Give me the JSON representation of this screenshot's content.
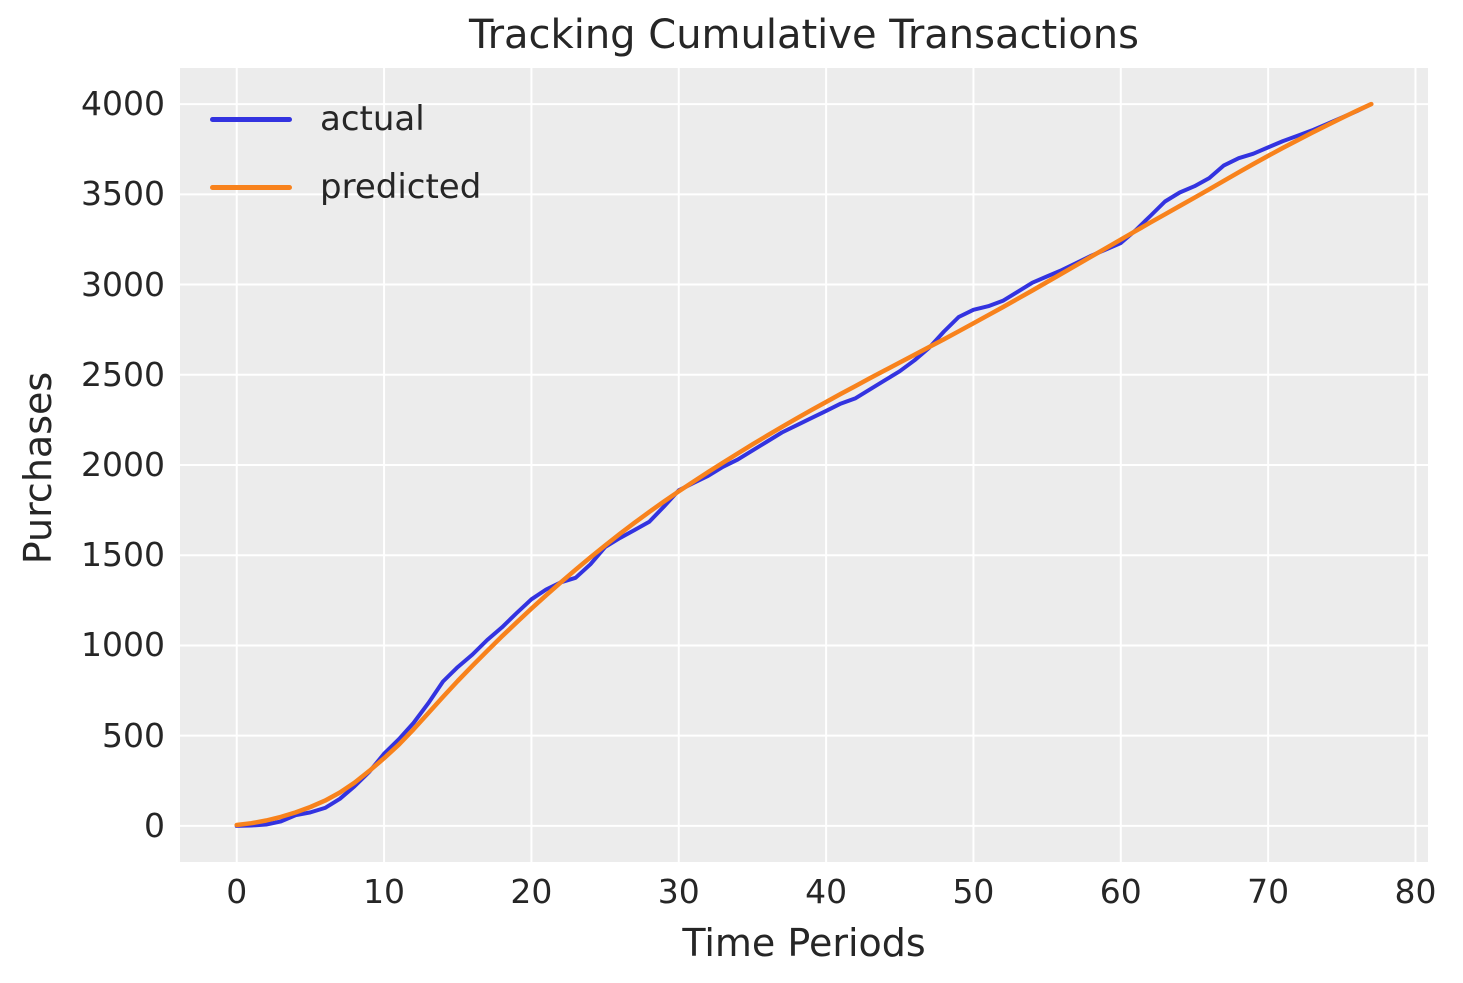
{
  "figure": {
    "title": "Tracking Cumulative Transactions",
    "xlabel": "Time Periods",
    "ylabel": "Purchases"
  },
  "chart_data": {
    "type": "line",
    "title": "Tracking Cumulative Transactions",
    "xlabel": "Time Periods",
    "ylabel": "Purchases",
    "grid": true,
    "legend_position": "upper left",
    "plot_bg_color": "#ececec",
    "grid_color": "#ffffff",
    "text_color": "#262626",
    "xlim": [
      -3.85,
      80.85
    ],
    "ylim": [
      -200,
      4200
    ],
    "xticks": [
      0,
      10,
      20,
      30,
      40,
      50,
      60,
      70,
      80
    ],
    "yticks": [
      0,
      500,
      1000,
      1500,
      2000,
      2500,
      3000,
      3500,
      4000
    ],
    "x": [
      0,
      1,
      2,
      3,
      4,
      5,
      6,
      7,
      8,
      9,
      10,
      11,
      12,
      13,
      14,
      15,
      16,
      17,
      18,
      19,
      20,
      21,
      22,
      23,
      24,
      25,
      26,
      27,
      28,
      29,
      30,
      31,
      32,
      33,
      34,
      35,
      36,
      37,
      38,
      39,
      40,
      41,
      42,
      43,
      44,
      45,
      46,
      47,
      48,
      49,
      50,
      51,
      52,
      53,
      54,
      55,
      56,
      57,
      58,
      59,
      60,
      61,
      62,
      63,
      64,
      65,
      66,
      67,
      68,
      69,
      70,
      71,
      72,
      73,
      74,
      75,
      76,
      77
    ],
    "series": [
      {
        "name": "actual",
        "color": "#3333e0",
        "stroke_width": 4,
        "values": [
          0,
          2,
          8,
          25,
          60,
          75,
          100,
          150,
          220,
          300,
          400,
          480,
          570,
          680,
          800,
          880,
          950,
          1030,
          1100,
          1180,
          1256,
          1310,
          1350,
          1375,
          1450,
          1545,
          1595,
          1640,
          1685,
          1770,
          1860,
          1900,
          1940,
          1990,
          2030,
          2080,
          2130,
          2180,
          2220,
          2260,
          2300,
          2340,
          2370,
          2420,
          2470,
          2520,
          2580,
          2650,
          2740,
          2820,
          2860,
          2880,
          2910,
          2960,
          3010,
          3045,
          3080,
          3120,
          3160,
          3195,
          3230,
          3300,
          3380,
          3460,
          3510,
          3545,
          3590,
          3660,
          3700,
          3725,
          3760,
          3795,
          3825,
          3855,
          3890,
          3925,
          3960,
          4000
        ]
      },
      {
        "name": "predicted",
        "color": "#f8821c",
        "stroke_width": 4.5,
        "values": [
          5,
          15,
          30,
          50,
          75,
          105,
          140,
          185,
          240,
          305,
          375,
          450,
          535,
          625,
          715,
          803,
          888,
          970,
          1050,
          1128,
          1204,
          1278,
          1350,
          1420,
          1488,
          1554,
          1618,
          1680,
          1740,
          1798,
          1854,
          1908,
          1961,
          2013,
          2064,
          2114,
          2163,
          2211,
          2258,
          2304,
          2349,
          2394,
          2438,
          2482,
          2525,
          2568,
          2611,
          2654,
          2697,
          2741,
          2785,
          2830,
          2875,
          2921,
          2967,
          3014,
          3061,
          3108,
          3155,
          3202,
          3249,
          3296,
          3343,
          3389,
          3435,
          3481,
          3528,
          3575,
          3622,
          3668,
          3713,
          3757,
          3800,
          3842,
          3883,
          3923,
          3962,
          4000
        ]
      }
    ]
  }
}
